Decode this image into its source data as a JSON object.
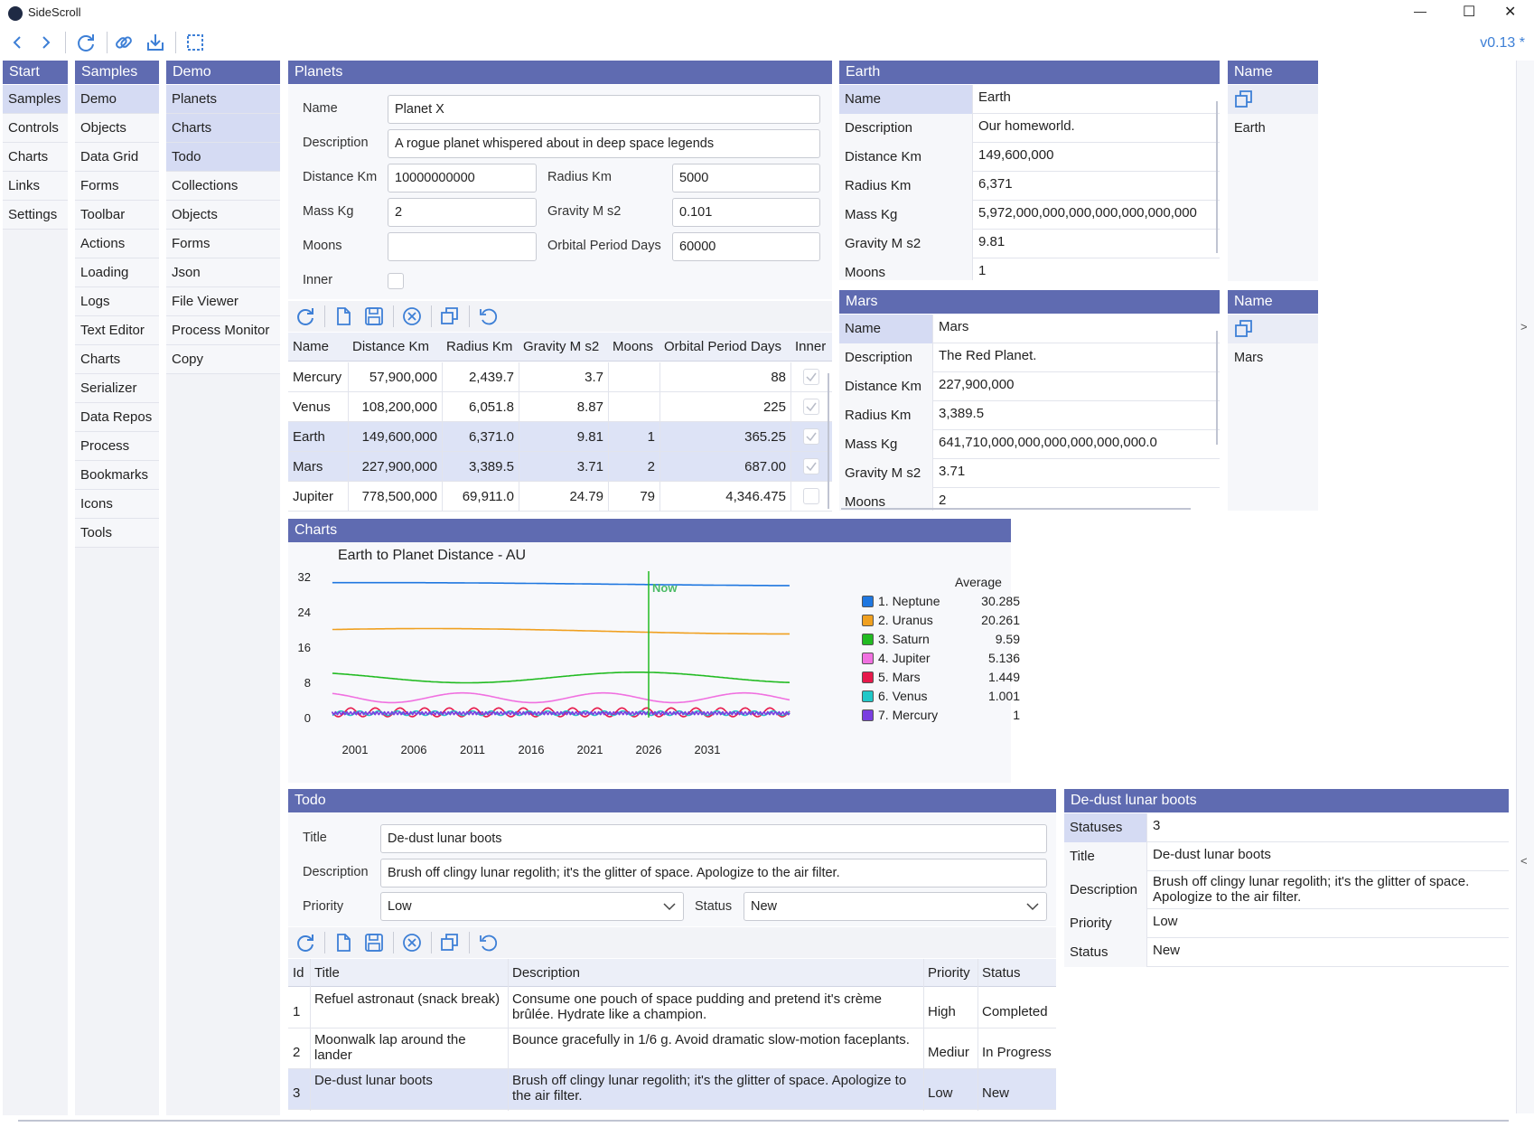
{
  "app": {
    "title": "SideScroll",
    "version": "v0.13 *"
  },
  "window_controls": {
    "minimize": "—",
    "maximize": "☐",
    "close": "✕"
  },
  "nav": {
    "back_icon": "chevron-left-icon",
    "forward_icon": "chevron-right-icon",
    "refresh_icon": "refresh-icon",
    "link_icon": "link-icon",
    "import_icon": "import-icon",
    "snapshot_icon": "snapshot-icon"
  },
  "columns": {
    "start": {
      "title": "Start",
      "items": [
        "Samples",
        "Controls",
        "Charts",
        "Links",
        "Settings"
      ]
    },
    "samples": {
      "title": "Samples",
      "items": [
        "Demo",
        "Objects",
        "Data Grid",
        "Forms",
        "Toolbar",
        "Actions",
        "Loading",
        "Logs",
        "Text Editor",
        "Charts",
        "Serializer",
        "Data Repos",
        "Process",
        "Bookmarks",
        "Icons",
        "Tools"
      ]
    },
    "demo": {
      "title": "Demo",
      "items": [
        "Planets",
        "Charts",
        "Todo",
        "Collections",
        "Objects",
        "Forms",
        "Json",
        "File Viewer",
        "Process Monitor",
        "Copy"
      ]
    }
  },
  "planets": {
    "title": "Planets",
    "form": {
      "name_label": "Name",
      "name_value": "Planet X",
      "description_label": "Description",
      "description_value": "A rogue planet whispered about in deep space legends",
      "distance_label": "Distance Km",
      "distance_value": "10000000000",
      "radius_label": "Radius Km",
      "radius_value": "5000",
      "mass_label": "Mass Kg",
      "mass_value": "2",
      "gravity_label": "Gravity M s2",
      "gravity_value": "0.101",
      "moons_label": "Moons",
      "moons_value": "",
      "orbital_label": "Orbital Period Days",
      "orbital_value": "60000",
      "inner_label": "Inner"
    },
    "grid": {
      "headers": [
        "Name",
        "Distance Km",
        "Radius Km",
        "Gravity M s2",
        "Moons",
        "Orbital Period Days",
        "Inner"
      ],
      "rows": [
        {
          "name": "Mercury",
          "distance": "57,900,000",
          "radius": "2,439.7",
          "gravity": "3.7",
          "moons": "",
          "orbital": "88",
          "inner": true
        },
        {
          "name": "Venus",
          "distance": "108,200,000",
          "radius": "6,051.8",
          "gravity": "8.87",
          "moons": "",
          "orbital": "225",
          "inner": true
        },
        {
          "name": "Earth",
          "distance": "149,600,000",
          "radius": "6,371.0",
          "gravity": "9.81",
          "moons": "1",
          "orbital": "365.25",
          "inner": true
        },
        {
          "name": "Mars",
          "distance": "227,900,000",
          "radius": "3,389.5",
          "gravity": "3.71",
          "moons": "2",
          "orbital": "687.00",
          "inner": true
        },
        {
          "name": "Jupiter",
          "distance": "778,500,000",
          "radius": "69,911.0",
          "gravity": "24.79",
          "moons": "79",
          "orbital": "4,346.475",
          "inner": false
        }
      ]
    }
  },
  "earth": {
    "title": "Earth",
    "rows": [
      {
        "k": "Name",
        "v": "Earth"
      },
      {
        "k": "Description",
        "v": "Our homeworld."
      },
      {
        "k": "Distance Km",
        "v": "149,600,000"
      },
      {
        "k": "Radius Km",
        "v": "6,371"
      },
      {
        "k": "Mass Kg",
        "v": "5,972,000,000,000,000,000,000,000"
      },
      {
        "k": "Gravity M s2",
        "v": "9.81"
      },
      {
        "k": "Moons",
        "v": "1"
      }
    ]
  },
  "earth_name": {
    "title": "Name",
    "value": "Earth"
  },
  "mars": {
    "title": "Mars",
    "rows": [
      {
        "k": "Name",
        "v": "Mars"
      },
      {
        "k": "Description",
        "v": "The Red Planet."
      },
      {
        "k": "Distance Km",
        "v": "227,900,000"
      },
      {
        "k": "Radius Km",
        "v": "3,389.5"
      },
      {
        "k": "Mass Kg",
        "v": "641,710,000,000,000,000,000,000.0"
      },
      {
        "k": "Gravity M s2",
        "v": "3.71"
      },
      {
        "k": "Moons",
        "v": "2"
      }
    ]
  },
  "mars_name": {
    "title": "Name",
    "value": "Mars"
  },
  "charts_panel": {
    "title": "Charts"
  },
  "chart_data": {
    "type": "line",
    "title": "Earth to Planet Distance - AU",
    "xlabel": "",
    "ylabel": "",
    "x_ticks": [
      2001,
      2006,
      2011,
      2016,
      2021,
      2026,
      2031
    ],
    "y_ticks": [
      0,
      8,
      16,
      24,
      32
    ],
    "xlim": [
      1998,
      2038
    ],
    "ylim": [
      0,
      32
    ],
    "annotation": {
      "label": "Now",
      "x": 2026
    },
    "legend_title": "Average",
    "legend_position": "right",
    "series": [
      {
        "name": "1. Neptune",
        "average": "30.285",
        "color": "#1f77e0",
        "base": 30.285,
        "amp": 0.35,
        "period": 80,
        "phase": 1.2
      },
      {
        "name": "2. Uranus",
        "average": "20.261",
        "color": "#f0a020",
        "base": 19.6,
        "amp": 0.6,
        "period": 60,
        "phase": 0.6
      },
      {
        "name": "3. Saturn",
        "average": "9.59",
        "color": "#22bb22",
        "base": 9.1,
        "amp": 1.2,
        "period": 29,
        "phase": 2.0
      },
      {
        "name": "4. Jupiter",
        "average": "5.136",
        "color": "#f070e0",
        "base": 4.5,
        "amp": 1.1,
        "period": 12,
        "phase": 1.5
      },
      {
        "name": "5. Mars",
        "average": "1.449",
        "color": "#e6194b",
        "base": 1.2,
        "amp": 1.0,
        "period": 2.1,
        "phase": 0.0
      },
      {
        "name": "6. Venus",
        "average": "1.001",
        "color": "#20c8c8",
        "base": 1.0,
        "amp": 0.5,
        "period": 1.6,
        "phase": 0.8
      },
      {
        "name": "7. Mercury",
        "average": "1",
        "color": "#7a3ee0",
        "base": 1.0,
        "amp": 0.3,
        "period": 0.32,
        "phase": 0.3
      }
    ]
  },
  "todo": {
    "title": "Todo",
    "form": {
      "title_label": "Title",
      "title_value": "De-dust lunar boots",
      "description_label": "Description",
      "description_value": "Brush off clingy lunar regolith; it's the glitter of space. Apologize to the air filter.",
      "priority_label": "Priority",
      "priority_value": "Low",
      "status_label": "Status",
      "status_value": "New"
    },
    "grid": {
      "headers": [
        "Id",
        "Title",
        "Description",
        "Priority",
        "Status"
      ],
      "rows": [
        {
          "id": "1",
          "title": "Refuel astronaut (snack break)",
          "description": "Consume one pouch of space pudding and pretend it's crème brûlée. Hydrate like a champion.",
          "priority": "High",
          "status": "Completed"
        },
        {
          "id": "2",
          "title": "Moonwalk lap around the lander",
          "description": "Bounce gracefully in 1/6 g. Avoid dramatic slow-motion faceplants.",
          "priority": "Mediur",
          "status": "In Progress"
        },
        {
          "id": "3",
          "title": "De-dust lunar boots",
          "description": "Brush off clingy lunar regolith; it's the glitter of space. Apologize to the air filter.",
          "priority": "Low",
          "status": "New"
        }
      ]
    }
  },
  "detail": {
    "title": "De-dust lunar boots",
    "rows": [
      {
        "k": "Statuses",
        "v": "3"
      },
      {
        "k": "Title",
        "v": "De-dust lunar boots"
      },
      {
        "k": "Description",
        "v": "Brush off clingy lunar regolith; it's the glitter of space. Apologize to the air filter."
      },
      {
        "k": "Priority",
        "v": "Low"
      },
      {
        "k": "Status",
        "v": "New"
      }
    ]
  },
  "side_expanders": {
    "right": ">",
    "left": "<"
  }
}
